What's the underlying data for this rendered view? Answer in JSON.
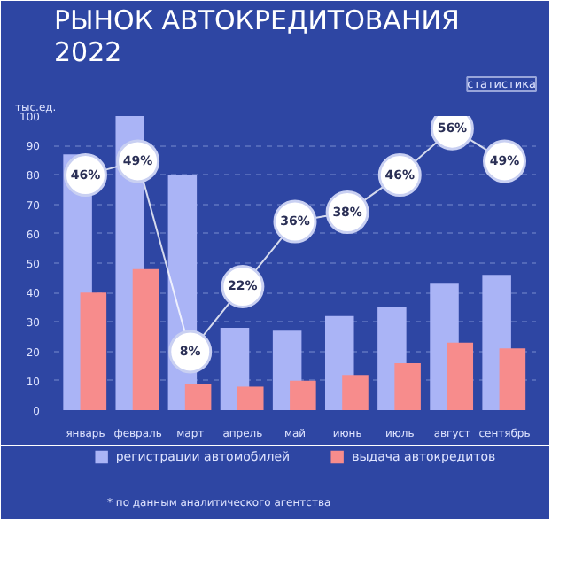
{
  "chart_data": {
    "type": "bar",
    "title": "РЫНОК АВТОКРЕДИТОВАНИЯ\n2022",
    "subtitle": "статистика",
    "ylabel": "тыс.ед.",
    "categories": [
      "январь",
      "февраль",
      "март",
      "апрель",
      "май",
      "июнь",
      "июль",
      "август",
      "сентябрь"
    ],
    "series": [
      {
        "name": "регистрации автомобилей",
        "color": "#aab4f6",
        "values": [
          87,
          100,
          80,
          28,
          27,
          32,
          35,
          43,
          46
        ]
      },
      {
        "name": "выдача автокредитов",
        "color": "#f78c8c",
        "values": [
          40,
          48,
          9,
          8,
          10,
          12,
          16,
          23,
          21
        ]
      },
      {
        "type": "line",
        "axis": "y2",
        "color": "#ffffff",
        "marker": "circle",
        "values": [
          46,
          49,
          8,
          22,
          36,
          38,
          46,
          56,
          49
        ],
        "value_labels": [
          "46%",
          "49%",
          "8%",
          "22%",
          "36%",
          "38%",
          "46%",
          "56%",
          "49%"
        ]
      }
    ],
    "ylim": [
      0,
      100
    ],
    "yticks": [
      0,
      10,
      20,
      30,
      40,
      50,
      60,
      70,
      80,
      90,
      100
    ],
    "y2lim": [
      -4.6,
      58.7
    ],
    "grid": "y",
    "legend": "bottom",
    "annotations": [
      "* по данным аналитического агентства"
    ]
  }
}
